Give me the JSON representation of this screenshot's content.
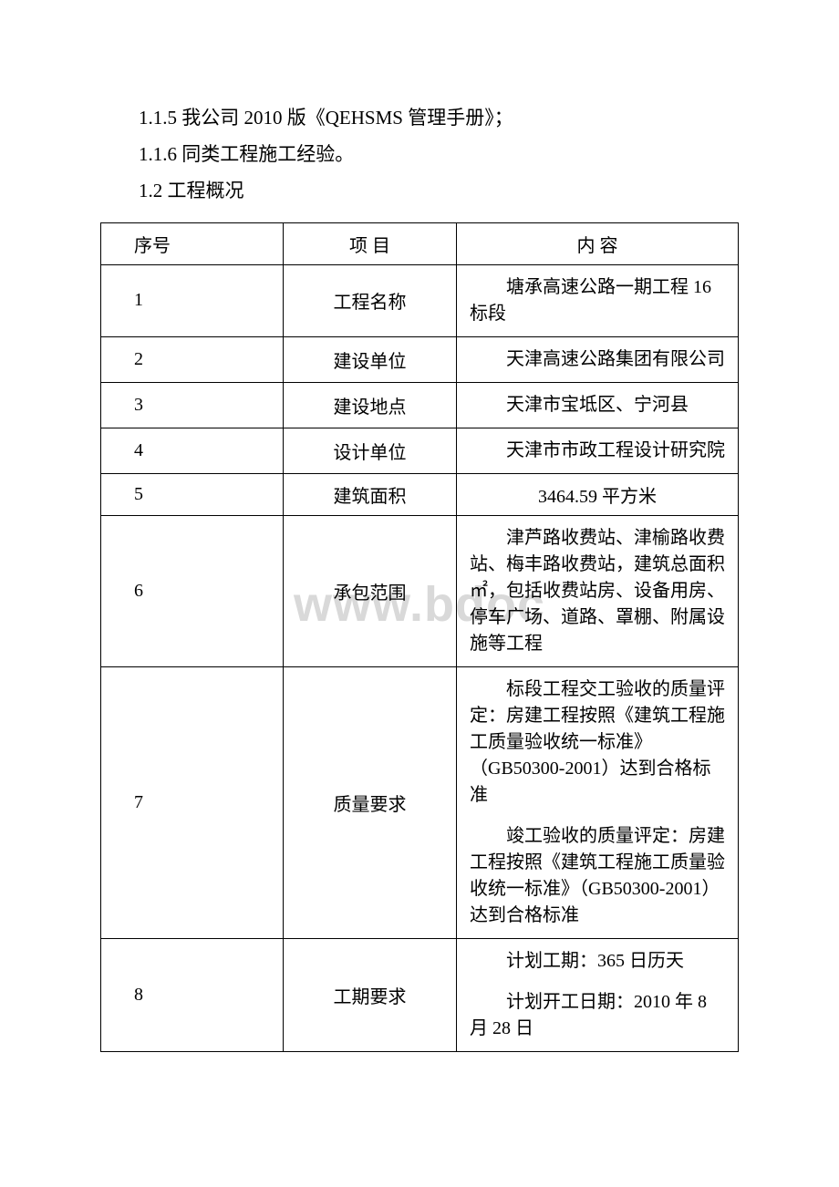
{
  "watermark": "www.bdoc",
  "lines": {
    "l1": "1.1.5  我公司 2010 版《QEHSMS 管理手册》；",
    "l2": "1.1.6  同类工程施工经验。",
    "l3": "1.2  工程概况"
  },
  "header": {
    "c1": "序号",
    "c2": "项 目",
    "c3": "内 容"
  },
  "rows": [
    {
      "n": "1",
      "item": "工程名称",
      "content": [
        "塘承高速公路一期工程 16 标段"
      ]
    },
    {
      "n": "2",
      "item": "建设单位",
      "content": [
        "天津高速公路集团有限公司"
      ]
    },
    {
      "n": "3",
      "item": "建设地点",
      "content": [
        "天津市宝坻区、宁河县"
      ]
    },
    {
      "n": "4",
      "item": "设计单位",
      "content": [
        "天津市市政工程设计研究院"
      ]
    },
    {
      "n": "5",
      "item": "建筑面积",
      "content_center": "3464.59 平方米"
    },
    {
      "n": "6",
      "item": "承包范围",
      "content": [
        "津芦路收费站、津榆路收费站、梅丰路收费站，建筑总面积㎡，包括收费站房、设备用房、停车广场、道路、罩棚、附属设施等工程"
      ]
    },
    {
      "n": "7",
      "item": "质量要求",
      "content": [
        "标段工程交工验收的质量评定：房建工程按照《建筑工程施工质量验收统一标准》（GB50300-2001）达到合格标准",
        "竣工验收的质量评定：房建工程按照《建筑工程施工质量验收统一标准》（GB50300-2001）达到合格标准"
      ]
    },
    {
      "n": "8",
      "item": "工期要求",
      "content": [
        "计划工期：365 日历天",
        "计划开工日期：2010 年 8 月 28 日"
      ]
    }
  ]
}
